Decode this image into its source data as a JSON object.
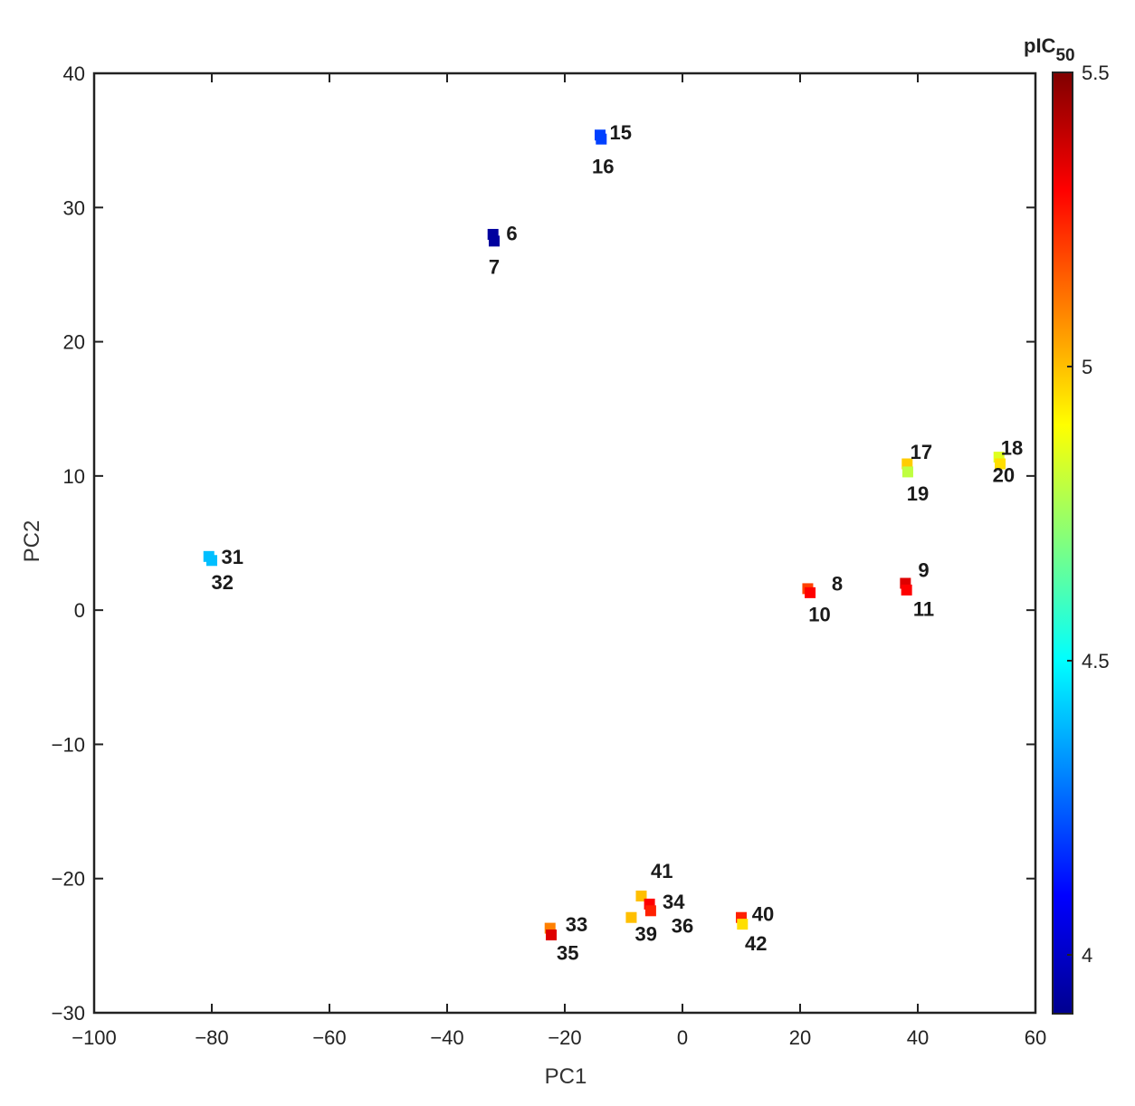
{
  "chart_data": {
    "type": "scatter",
    "title": "",
    "xlabel": "PC1",
    "ylabel": "PC2",
    "xlim": [
      -100,
      60
    ],
    "ylim": [
      -30,
      40
    ],
    "xticks": [
      {
        "value": -100,
        "label": "−100"
      },
      {
        "value": -80,
        "label": "−80"
      },
      {
        "value": -60,
        "label": "−60"
      },
      {
        "value": -40,
        "label": "−40"
      },
      {
        "value": -20,
        "label": "−20"
      },
      {
        "value": 0,
        "label": "0"
      },
      {
        "value": 20,
        "label": "20"
      },
      {
        "value": 40,
        "label": "40"
      },
      {
        "value": 60,
        "label": "60"
      }
    ],
    "yticks": [
      {
        "value": -30,
        "label": "−30"
      },
      {
        "value": -20,
        "label": "−20"
      },
      {
        "value": -10,
        "label": "−10"
      },
      {
        "value": 0,
        "label": "0"
      },
      {
        "value": 10,
        "label": "10"
      },
      {
        "value": 20,
        "label": "20"
      },
      {
        "value": 30,
        "label": "30"
      },
      {
        "value": 40,
        "label": "40"
      }
    ],
    "grid": false,
    "colorbar": {
      "title": "pIC",
      "title_subscript": "50",
      "range": [
        3.9,
        5.5
      ],
      "colormap": "jet",
      "ticks": [
        {
          "value": 4,
          "label": "4"
        },
        {
          "value": 4.5,
          "label": "4.5"
        },
        {
          "value": 5,
          "label": "5"
        },
        {
          "value": 5.5,
          "label": "5.5"
        }
      ]
    },
    "points": [
      {
        "id": "15",
        "x": -14.0,
        "y": 35.4,
        "pic50": 4.2
      },
      {
        "id": "16",
        "x": -13.8,
        "y": 35.1,
        "pic50": 4.2
      },
      {
        "id": "6",
        "x": -32.2,
        "y": 28.0,
        "pic50": 3.95
      },
      {
        "id": "7",
        "x": -32.0,
        "y": 27.5,
        "pic50": 3.95
      },
      {
        "id": "31",
        "x": -80.5,
        "y": 4.0,
        "pic50": 4.4
      },
      {
        "id": "32",
        "x": -80.0,
        "y": 3.7,
        "pic50": 4.4
      },
      {
        "id": "17",
        "x": 38.2,
        "y": 10.9,
        "pic50": 4.98
      },
      {
        "id": "19",
        "x": 38.3,
        "y": 10.3,
        "pic50": 4.8
      },
      {
        "id": "18",
        "x": 53.8,
        "y": 11.4,
        "pic50": 4.85
      },
      {
        "id": "20",
        "x": 54.0,
        "y": 10.9,
        "pic50": 4.95
      },
      {
        "id": "8",
        "x": 21.3,
        "y": 1.6,
        "pic50": 5.2
      },
      {
        "id": "10",
        "x": 21.7,
        "y": 1.3,
        "pic50": 5.3
      },
      {
        "id": "9",
        "x": 37.9,
        "y": 2.0,
        "pic50": 5.35
      },
      {
        "id": "11",
        "x": 38.1,
        "y": 1.5,
        "pic50": 5.3
      },
      {
        "id": "41",
        "x": -7.0,
        "y": -21.3,
        "pic50": 5.0
      },
      {
        "id": "34",
        "x": -5.6,
        "y": -21.9,
        "pic50": 5.3
      },
      {
        "id": "36",
        "x": -5.4,
        "y": -22.4,
        "pic50": 5.25
      },
      {
        "id": "39",
        "x": -8.7,
        "y": -22.9,
        "pic50": 5.0
      },
      {
        "id": "33",
        "x": -22.5,
        "y": -23.7,
        "pic50": 5.1
      },
      {
        "id": "35",
        "x": -22.3,
        "y": -24.2,
        "pic50": 5.35
      },
      {
        "id": "40",
        "x": 10.0,
        "y": -22.9,
        "pic50": 5.25
      },
      {
        "id": "42",
        "x": 10.2,
        "y": -23.4,
        "pic50": 4.95
      }
    ],
    "labels": [
      {
        "text": "15",
        "x": -10.5,
        "y": 35.6
      },
      {
        "text": "16",
        "x": -13.5,
        "y": 33.1
      },
      {
        "text": "6",
        "x": -29.0,
        "y": 28.1
      },
      {
        "text": "7",
        "x": -32.0,
        "y": 25.6
      },
      {
        "text": "31",
        "x": -76.5,
        "y": 4.0
      },
      {
        "text": "32",
        "x": -78.2,
        "y": 2.1
      },
      {
        "text": "17",
        "x": 40.6,
        "y": 11.8
      },
      {
        "text": "19",
        "x": 40.0,
        "y": 8.7
      },
      {
        "text": "18",
        "x": 56.0,
        "y": 12.1
      },
      {
        "text": "20",
        "x": 54.6,
        "y": 10.1
      },
      {
        "text": "8",
        "x": 26.3,
        "y": 2.0
      },
      {
        "text": "10",
        "x": 23.3,
        "y": -0.3
      },
      {
        "text": "9",
        "x": 41.0,
        "y": 3.0
      },
      {
        "text": "11",
        "x": 41.0,
        "y": 0.1
      },
      {
        "text": "41",
        "x": -3.5,
        "y": -19.4
      },
      {
        "text": "34",
        "x": -1.5,
        "y": -21.7
      },
      {
        "text": "36",
        "x": 0.0,
        "y": -23.5
      },
      {
        "text": "39",
        "x": -6.2,
        "y": -24.1
      },
      {
        "text": "33",
        "x": -18.0,
        "y": -23.4
      },
      {
        "text": "35",
        "x": -19.5,
        "y": -25.5
      },
      {
        "text": "40",
        "x": 13.7,
        "y": -22.6
      },
      {
        "text": "42",
        "x": 12.5,
        "y": -24.8
      }
    ]
  }
}
